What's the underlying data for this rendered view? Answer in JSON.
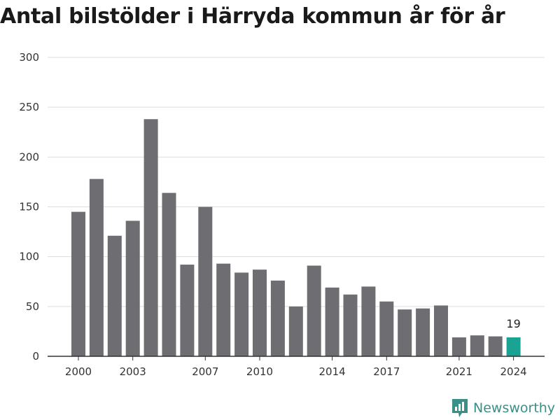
{
  "header": {
    "title": "Antal bilstölder i Härryda kommun år för år"
  },
  "brand": {
    "name": "Newsworthy"
  },
  "colors": {
    "bar": "#6e6d72",
    "highlight": "#1aa392",
    "grid": "#dddddd",
    "axis": "#333333",
    "brand": "#3a8f86"
  },
  "chart_data": {
    "type": "bar",
    "title": "Antal bilstölder i Härryda kommun år för år",
    "xlabel": "",
    "ylabel": "",
    "categories": [
      2000,
      2001,
      2002,
      2003,
      2004,
      2005,
      2006,
      2007,
      2008,
      2009,
      2010,
      2011,
      2012,
      2013,
      2014,
      2015,
      2016,
      2017,
      2018,
      2019,
      2020,
      2021,
      2022,
      2023,
      2024
    ],
    "values": [
      145,
      178,
      121,
      136,
      238,
      164,
      92,
      150,
      93,
      84,
      87,
      76,
      50,
      91,
      69,
      62,
      70,
      55,
      47,
      48,
      51,
      19,
      21,
      20,
      19
    ],
    "x_tick_labels": [
      "2000",
      "2003",
      "2007",
      "2010",
      "2014",
      "2017",
      "2021",
      "2024"
    ],
    "y_ticks": [
      0,
      50,
      100,
      150,
      200,
      250,
      300
    ],
    "ylim": [
      0,
      300
    ],
    "highlight_category": 2024,
    "annotations": [
      {
        "category": 2024,
        "text": "19"
      }
    ],
    "grid": true,
    "legend": "none"
  }
}
